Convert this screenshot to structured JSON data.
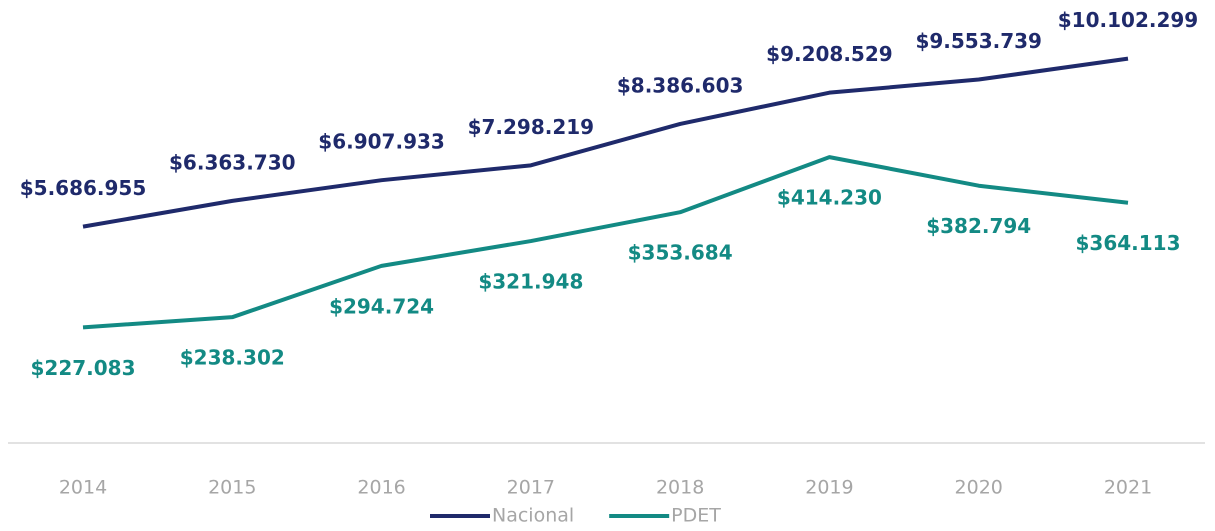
{
  "chart_data": {
    "type": "line",
    "categories": [
      "2014",
      "2015",
      "2016",
      "2017",
      "2018",
      "2019",
      "2020",
      "2021"
    ],
    "series": [
      {
        "name": "Nacional",
        "color": "#1f2a6b",
        "axis": "y",
        "values": [
          5686955,
          6363730,
          6907933,
          7298219,
          8386603,
          9208529,
          9553739,
          10102299
        ],
        "value_labels": [
          "$5.686.955",
          "$6.363.730",
          "$6.907.933",
          "$7.298.219",
          "$8.386.603",
          "$9.208.529",
          "$9.553.739",
          "$10.102.299"
        ]
      },
      {
        "name": "PDET",
        "color": "#138a84",
        "axis": "y2",
        "values": [
          227083,
          238302,
          294724,
          321948,
          353684,
          414230,
          382794,
          364113
        ],
        "value_labels": [
          "$227.083",
          "$238.302",
          "$294.724",
          "$321.948",
          "$353.684",
          "$414.230",
          "$382.794",
          "$364.113"
        ]
      }
    ],
    "ylim": [
      0,
      11000000
    ],
    "y2lim": [
      100000,
      560000
    ],
    "legend": "bottom"
  }
}
